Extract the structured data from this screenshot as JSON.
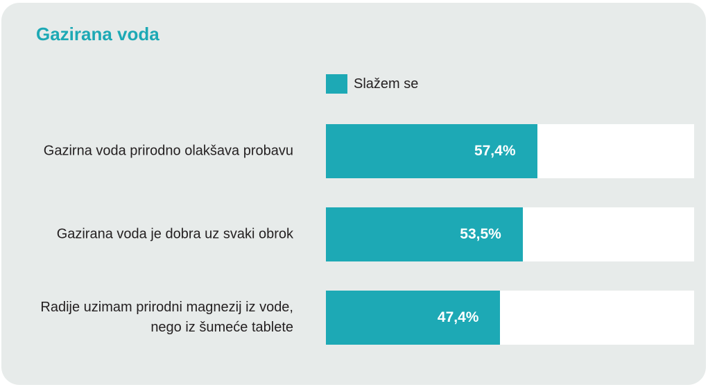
{
  "chart_data": {
    "type": "bar",
    "orientation": "horizontal",
    "title": "Gazirana voda",
    "categories": [
      "Gazirna voda prirodno olakšava probavu",
      "Gazirana voda je dobra uz svaki obrok",
      "Radije uzimam prirodni magnezij iz vode, nego iz šumeće tablete"
    ],
    "series": [
      {
        "name": "Slažem se",
        "values": [
          57.4,
          53.5,
          47.4
        ],
        "labels": [
          "57,4%",
          "53,5%",
          "47,4%"
        ]
      }
    ],
    "xlim": [
      0,
      100
    ],
    "grid": false,
    "legend_position": "top",
    "colors": {
      "accent": "#1da9b5",
      "background": "#e7ebea",
      "track": "#ffffff",
      "text": "#231f20"
    }
  }
}
